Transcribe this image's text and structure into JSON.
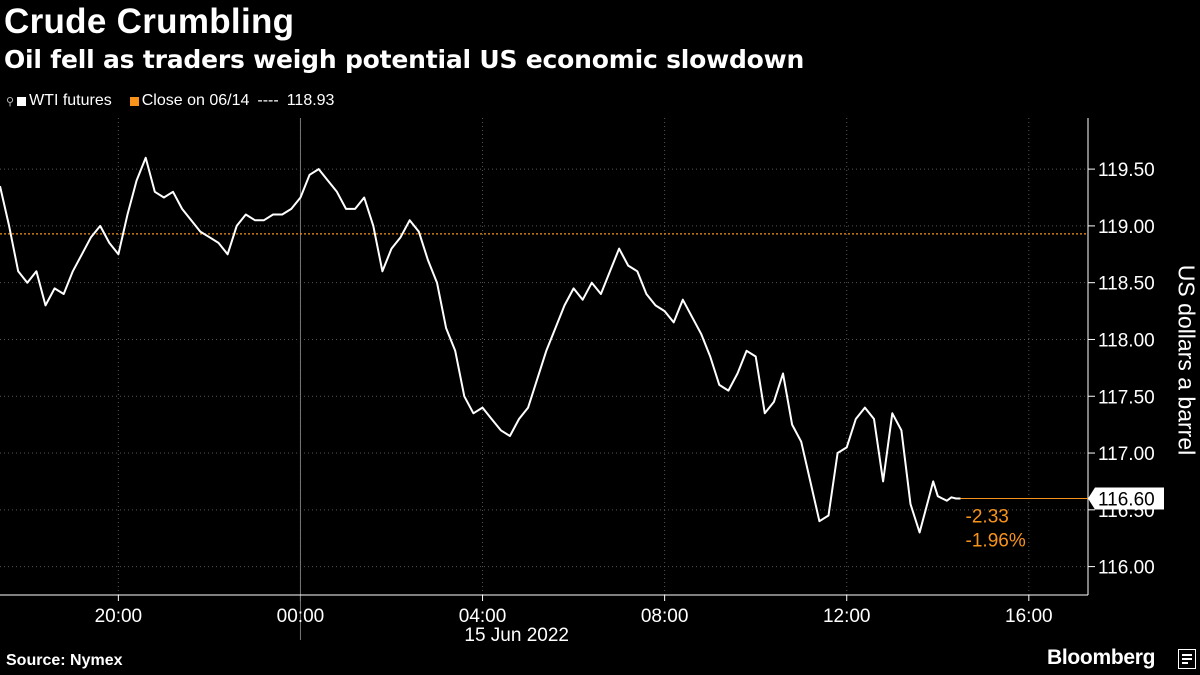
{
  "title": "Crude Crumbling",
  "subtitle": "Oil fell as traders weigh potential US economic slowdown",
  "legend": {
    "series_label": "WTI futures",
    "close_label": "Close on 06/14",
    "close_dashes": "----",
    "close_value": "118.93"
  },
  "source": "Source: Nymex",
  "brand": "Bloomberg",
  "colors": {
    "background": "#000000",
    "series": "#ffffff",
    "close": "#f7931a",
    "grid": "#555555"
  },
  "chart_data": {
    "type": "line",
    "title": "Crude Crumbling",
    "subtitle": "Oil fell as traders weigh potential US economic slowdown",
    "ylabel": "US dollars a barrel",
    "xlabel": "15 Jun 2022",
    "date_label": "15 Jun 2022",
    "x_unit": "hours relative to 00:00 on 15 Jun 2022",
    "xlim": [
      -6.6,
      17.3
    ],
    "ylim": [
      115.75,
      119.95
    ],
    "x_ticks": [
      {
        "x": -4,
        "label": "20:00"
      },
      {
        "x": 0,
        "label": "00:00"
      },
      {
        "x": 4,
        "label": "04:00"
      },
      {
        "x": 8,
        "label": "08:00"
      },
      {
        "x": 12,
        "label": "12:00"
      },
      {
        "x": 16,
        "label": "16:00"
      }
    ],
    "y_ticks": [
      {
        "y": 116.0,
        "label": "116.00"
      },
      {
        "y": 116.5,
        "label": "116.50"
      },
      {
        "y": 117.0,
        "label": "117.00"
      },
      {
        "y": 117.5,
        "label": "117.50"
      },
      {
        "y": 118.0,
        "label": "118.00"
      },
      {
        "y": 118.5,
        "label": "118.50"
      },
      {
        "y": 119.0,
        "label": "119.00"
      },
      {
        "y": 119.5,
        "label": "119.50"
      }
    ],
    "grid": true,
    "y_axis_side": "right",
    "legend_position": "top-left",
    "reference_line": {
      "name": "Close on 06/14",
      "value": 118.93
    },
    "last_value": {
      "value": 116.6,
      "label": "116.60"
    },
    "change_labels": {
      "abs": "-2.33",
      "pct": "-1.96%"
    },
    "series": [
      {
        "name": "WTI futures",
        "x": [
          -6.6,
          -6.4,
          -6.2,
          -6.0,
          -5.8,
          -5.6,
          -5.4,
          -5.2,
          -5.0,
          -4.8,
          -4.6,
          -4.4,
          -4.2,
          -4.0,
          -3.8,
          -3.6,
          -3.4,
          -3.2,
          -3.0,
          -2.8,
          -2.6,
          -2.4,
          -2.2,
          -2.0,
          -1.8,
          -1.6,
          -1.4,
          -1.2,
          -1.0,
          -0.8,
          -0.6,
          -0.4,
          -0.2,
          0.0,
          0.2,
          0.4,
          0.6,
          0.8,
          1.0,
          1.2,
          1.4,
          1.6,
          1.8,
          2.0,
          2.2,
          2.4,
          2.6,
          2.8,
          3.0,
          3.2,
          3.4,
          3.6,
          3.8,
          4.0,
          4.2,
          4.4,
          4.6,
          4.8,
          5.0,
          5.2,
          5.4,
          5.6,
          5.8,
          6.0,
          6.2,
          6.4,
          6.6,
          6.8,
          7.0,
          7.2,
          7.4,
          7.6,
          7.8,
          8.0,
          8.2,
          8.4,
          8.6,
          8.8,
          9.0,
          9.2,
          9.4,
          9.6,
          9.8,
          10.0,
          10.2,
          10.4,
          10.6,
          10.8,
          11.0,
          11.2,
          11.4,
          11.6,
          11.8,
          12.0,
          12.2,
          12.4,
          12.6,
          12.8,
          13.0,
          13.2,
          13.4,
          13.6,
          13.8,
          13.9,
          14.0,
          14.1,
          14.2,
          14.3,
          14.4,
          14.5
        ],
        "values": [
          119.35,
          119.0,
          118.6,
          118.5,
          118.6,
          118.3,
          118.45,
          118.4,
          118.6,
          118.75,
          118.9,
          119.0,
          118.85,
          118.75,
          119.1,
          119.4,
          119.6,
          119.3,
          119.25,
          119.3,
          119.15,
          119.05,
          118.95,
          118.9,
          118.85,
          118.75,
          119.0,
          119.1,
          119.05,
          119.05,
          119.1,
          119.1,
          119.15,
          119.25,
          119.45,
          119.5,
          119.4,
          119.3,
          119.15,
          119.15,
          119.25,
          119.0,
          118.6,
          118.8,
          118.9,
          119.05,
          118.95,
          118.7,
          118.5,
          118.1,
          117.9,
          117.5,
          117.35,
          117.4,
          117.3,
          117.2,
          117.15,
          117.3,
          117.4,
          117.65,
          117.9,
          118.1,
          118.3,
          118.45,
          118.35,
          118.5,
          118.4,
          118.6,
          118.8,
          118.65,
          118.6,
          118.4,
          118.3,
          118.25,
          118.15,
          118.35,
          118.2,
          118.05,
          117.85,
          117.6,
          117.55,
          117.7,
          117.9,
          117.85,
          117.35,
          117.45,
          117.7,
          117.25,
          117.1,
          116.75,
          116.4,
          116.45,
          117.0,
          117.05,
          117.3,
          117.4,
          117.3,
          116.75,
          117.35,
          117.2,
          116.55,
          116.3,
          116.6,
          116.75,
          116.62,
          116.6,
          116.58,
          116.61,
          116.6,
          116.6
        ]
      }
    ]
  }
}
